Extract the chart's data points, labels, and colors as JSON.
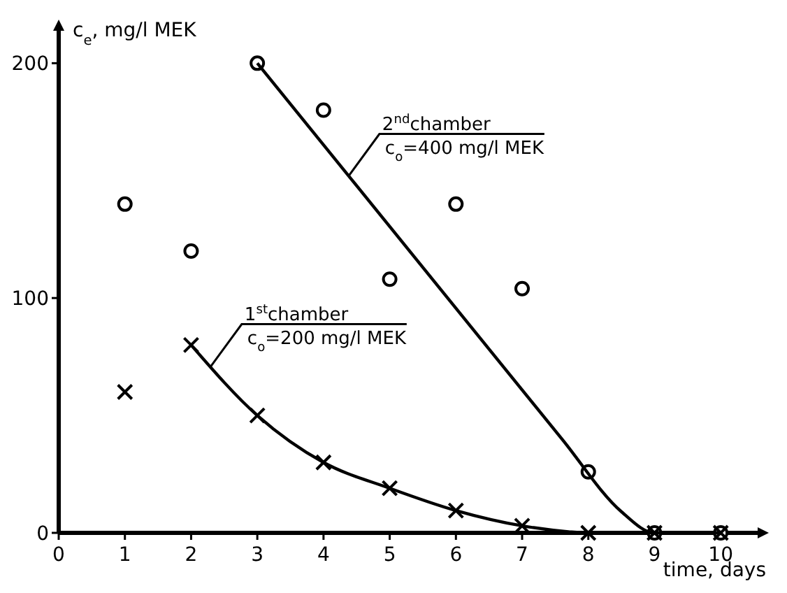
{
  "chart_data": {
    "type": "scatter",
    "xlabel": "time, days",
    "ylabel": "c$_{e}$, mg/l MEK",
    "xlim": [
      0,
      10.6
    ],
    "ylim": [
      0,
      215
    ],
    "xticks": [
      0,
      1,
      2,
      3,
      4,
      5,
      6,
      7,
      8,
      9,
      10
    ],
    "yticks": [
      0,
      100,
      200
    ],
    "grid": false,
    "legend": false,
    "series": [
      {
        "color": "#000000",
        "marker": "circle",
        "x": [
          1,
          2,
          3,
          4,
          5,
          6,
          7,
          8,
          9,
          10
        ],
        "values": [
          140,
          120,
          200,
          180,
          108,
          140,
          104,
          26,
          0,
          0
        ]
      },
      {
        "color": "#000000",
        "marker": "cross",
        "x": [
          1,
          2,
          3,
          4,
          5,
          6,
          7,
          8,
          9,
          10
        ],
        "values": [
          60,
          80,
          50,
          30,
          19,
          9.5,
          3,
          0,
          0,
          0
        ]
      },
      {
        "type": "line",
        "name": "2$^{nd}$chamber\nc$_{o}$=400 mg/l MEK",
        "color": "#000000",
        "marker": "none",
        "line_style": "solid",
        "x": [
          3,
          7.6,
          8.5,
          9,
          10
        ],
        "values": [
          200,
          40,
          9,
          0,
          0
        ]
      },
      {
        "type": "line",
        "name": "1$^{st}$chamber\nc$_{o}$=200 mg/l MEK",
        "color": "#000000",
        "marker": "none",
        "line_style": "solid",
        "x": [
          2,
          3,
          4,
          5,
          6,
          7,
          7.7,
          8,
          10
        ],
        "values": [
          80,
          50,
          30,
          19,
          9.5,
          3,
          0.5,
          0,
          0
        ]
      }
    ]
  }
}
